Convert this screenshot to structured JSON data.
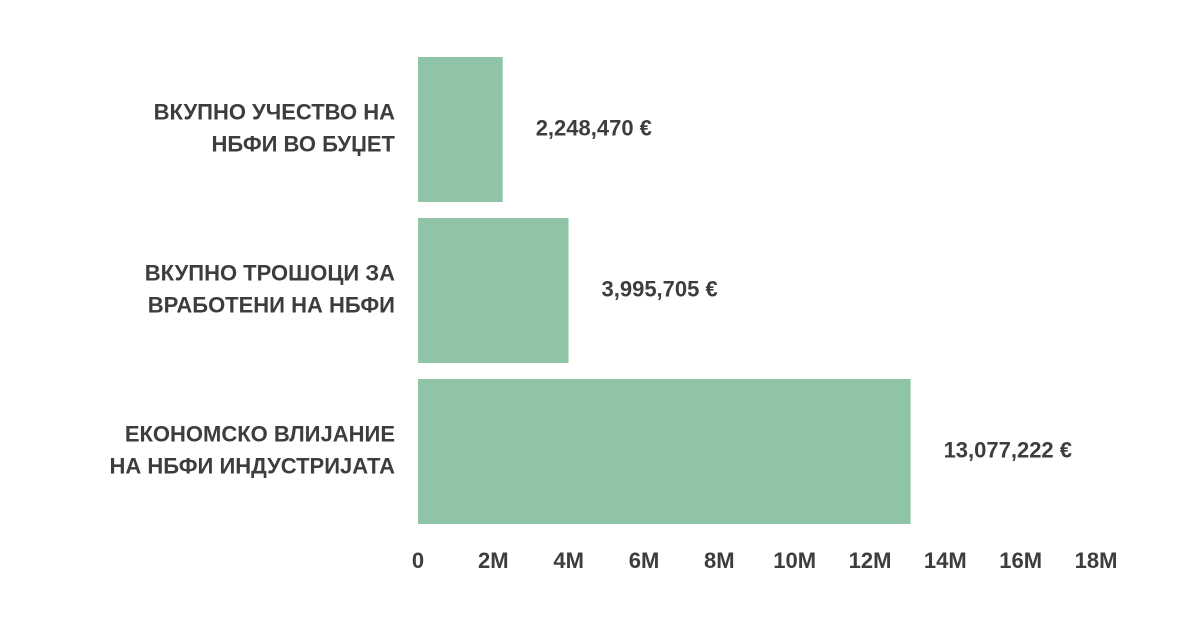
{
  "chart_data": {
    "type": "hbar",
    "categories": [
      [
        "ВКУПНО УЧЕСТВО НА",
        "НБФИ ВО БУЏЕТ"
      ],
      [
        "ВКУПНО ТРОШОЦИ ЗА",
        "ВРАБОТЕНИ НА НБФИ"
      ],
      [
        "ЕКОНОМСКО ВЛИЈАНИЕ",
        "НА НБФИ ИНДУСТРИЈАТА"
      ]
    ],
    "values": [
      2248470,
      3995705,
      13077222
    ],
    "value_labels": [
      "2,248,470 €",
      "3,995,705 €",
      "13,077,222 €"
    ],
    "color": "#8fc4a7",
    "xlim": [
      0,
      18000000
    ],
    "xticks": [
      0,
      {
        "value": 2000000,
        "label": "2M"
      },
      {
        "value": 4000000,
        "label": "4M"
      },
      {
        "value": 6000000,
        "label": "6M"
      },
      {
        "value": 8000000,
        "label": "8M"
      },
      {
        "value": 10000000,
        "label": "10M"
      },
      {
        "value": 12000000,
        "label": "12M"
      },
      {
        "value": 14000000,
        "label": "14M"
      },
      {
        "value": 16000000,
        "label": "16M"
      },
      {
        "value": 18000000,
        "label": "18M"
      }
    ],
    "grid": false
  }
}
